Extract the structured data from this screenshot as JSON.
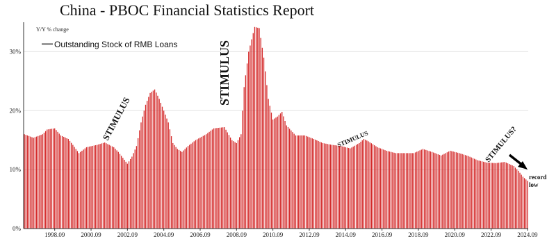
{
  "chart_data": {
    "type": "bar",
    "title": "China - PBOC Financial Statistics Report",
    "ylabel": "Y/Y % change",
    "ylim": [
      0,
      35
    ],
    "yticks": [
      0,
      10,
      20,
      30
    ],
    "ytick_labels": [
      "0%",
      "10%",
      "20%",
      "30%"
    ],
    "xtick_labels": [
      "1998.09",
      "2000.09",
      "2002.09",
      "2004.09",
      "2006.09",
      "2008.09",
      "2010.09",
      "2012.09",
      "2014.09",
      "2016.09",
      "2018.09",
      "2020.09",
      "2022.09",
      "2024.09"
    ],
    "grid": true,
    "legend_position": "top-left",
    "bar_color": "#d42a2a",
    "series": [
      {
        "name": "Outstanding Stock of RMB Loans",
        "color": "#d42a2a"
      }
    ],
    "x_start": "1997.01",
    "x_end": "2024.09",
    "anchors": [
      [
        "1997.01",
        16.0
      ],
      [
        "1997.07",
        15.4
      ],
      [
        "1998.01",
        16.0
      ],
      [
        "1998.04",
        16.8
      ],
      [
        "1998.09",
        17.0
      ],
      [
        "1999.01",
        15.8
      ],
      [
        "1999.06",
        15.2
      ],
      [
        "1999.09",
        14.2
      ],
      [
        "2000.01",
        12.8
      ],
      [
        "2000.06",
        13.8
      ],
      [
        "2001.01",
        14.2
      ],
      [
        "2001.06",
        14.6
      ],
      [
        "2001.12",
        13.8
      ],
      [
        "2002.03",
        13.0
      ],
      [
        "2002.06",
        12.0
      ],
      [
        "2002.09",
        11.0
      ],
      [
        "2002.12",
        12.2
      ],
      [
        "2003.03",
        14.0
      ],
      [
        "2003.06",
        18.0
      ],
      [
        "2003.09",
        21.0
      ],
      [
        "2003.12",
        23.0
      ],
      [
        "2004.03",
        23.6
      ],
      [
        "2004.06",
        22.0
      ],
      [
        "2004.09",
        20.0
      ],
      [
        "2004.12",
        18.0
      ],
      [
        "2005.03",
        14.5
      ],
      [
        "2005.06",
        13.5
      ],
      [
        "2005.09",
        13.0
      ],
      [
        "2006.01",
        14.0
      ],
      [
        "2006.06",
        15.0
      ],
      [
        "2007.01",
        16.0
      ],
      [
        "2007.06",
        17.0
      ],
      [
        "2008.01",
        17.2
      ],
      [
        "2008.06",
        15.0
      ],
      [
        "2008.09",
        14.5
      ],
      [
        "2008.12",
        16.0
      ],
      [
        "2009.02",
        24.0
      ],
      [
        "2009.05",
        30.0
      ],
      [
        "2009.09",
        34.2
      ],
      [
        "2009.12",
        34.0
      ],
      [
        "2010.03",
        29.0
      ],
      [
        "2010.06",
        22.0
      ],
      [
        "2010.09",
        18.5
      ],
      [
        "2010.12",
        19.0
      ],
      [
        "2011.03",
        19.8
      ],
      [
        "2011.06",
        17.5
      ],
      [
        "2011.12",
        15.8
      ],
      [
        "2012.06",
        15.8
      ],
      [
        "2012.12",
        15.2
      ],
      [
        "2013.06",
        14.5
      ],
      [
        "2013.12",
        14.2
      ],
      [
        "2014.06",
        14.0
      ],
      [
        "2014.12",
        13.6
      ],
      [
        "2015.06",
        14.5
      ],
      [
        "2015.09",
        15.2
      ],
      [
        "2015.12",
        14.8
      ],
      [
        "2016.06",
        13.8
      ],
      [
        "2016.12",
        13.2
      ],
      [
        "2017.06",
        12.8
      ],
      [
        "2017.12",
        12.8
      ],
      [
        "2018.06",
        12.8
      ],
      [
        "2018.12",
        13.5
      ],
      [
        "2019.06",
        13.0
      ],
      [
        "2019.12",
        12.4
      ],
      [
        "2020.06",
        13.2
      ],
      [
        "2020.12",
        12.8
      ],
      [
        "2021.06",
        12.3
      ],
      [
        "2021.12",
        11.6
      ],
      [
        "2022.06",
        11.2
      ],
      [
        "2022.12",
        11.1
      ],
      [
        "2023.06",
        11.3
      ],
      [
        "2023.12",
        10.6
      ],
      [
        "2024.03",
        9.8
      ],
      [
        "2024.06",
        8.8
      ],
      [
        "2024.09",
        8.1
      ]
    ],
    "annotations": [
      "STIMULUS",
      "STIMULUS",
      "STIMULUS",
      "STIMULUS?"
    ],
    "notes": [
      "record",
      "low"
    ]
  }
}
